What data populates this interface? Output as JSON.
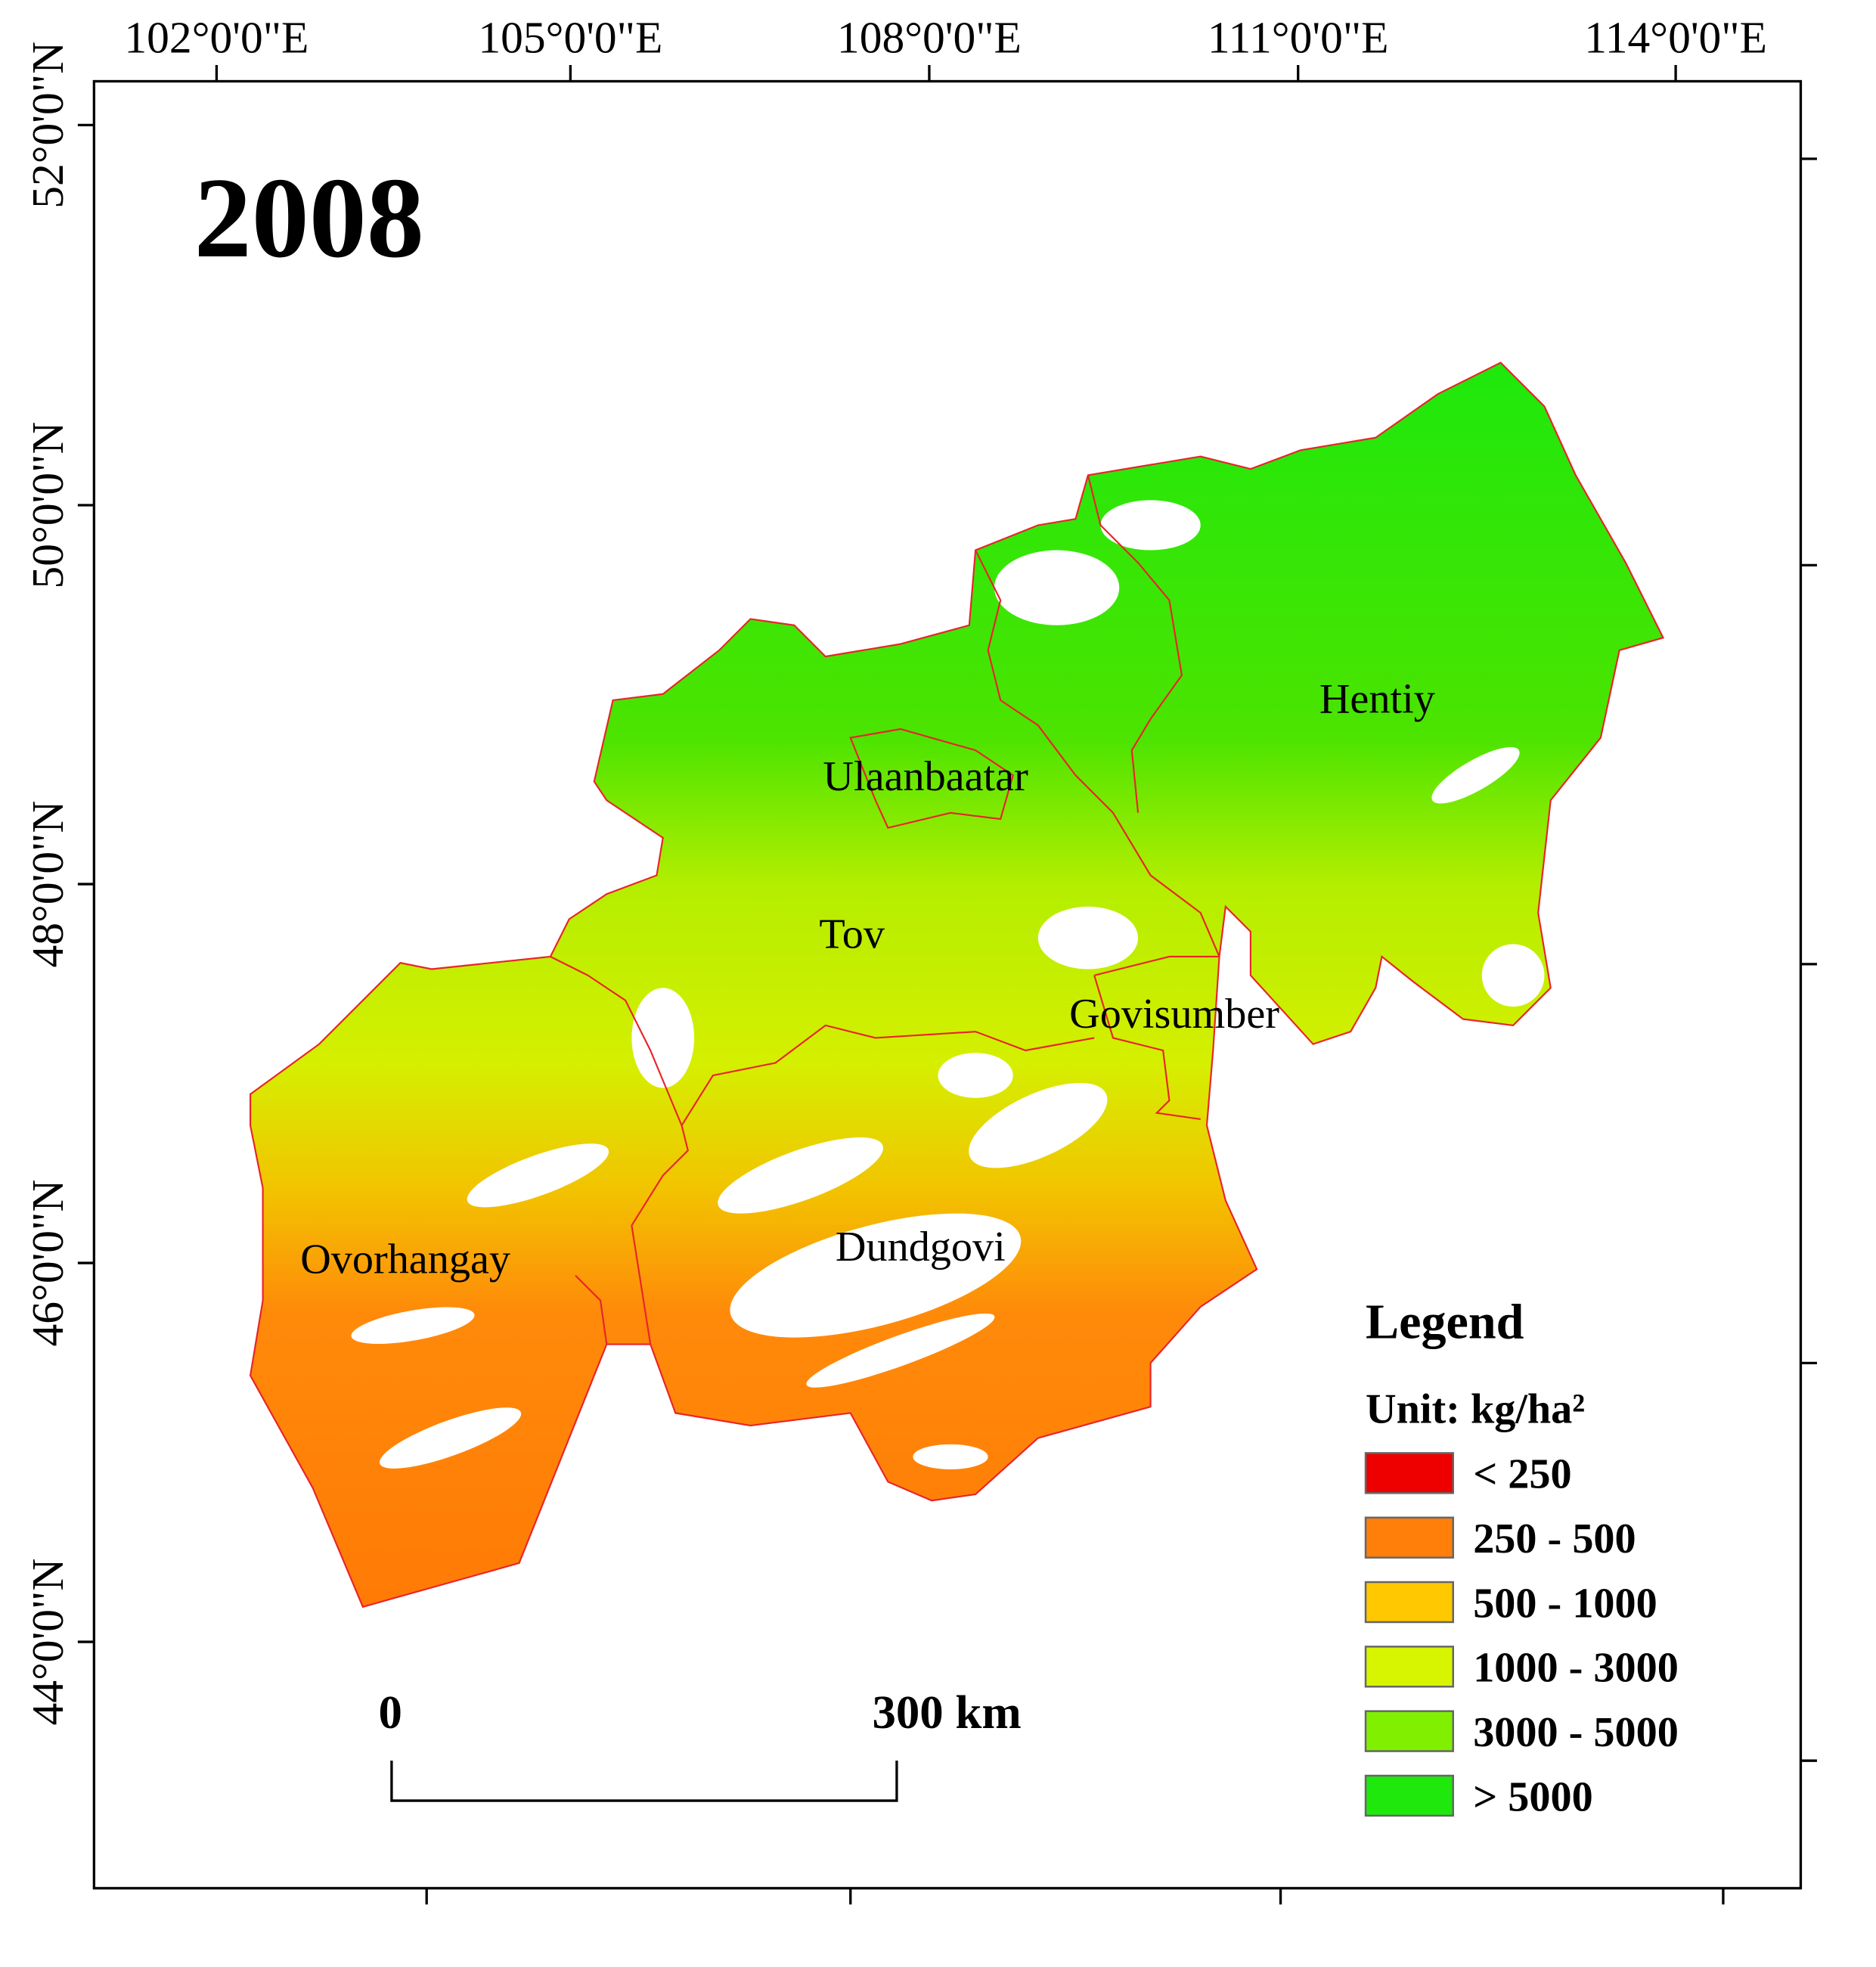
{
  "title": "2008",
  "longitude_labels": [
    "102°0'0\"E",
    "105°0'0\"E",
    "108°0'0\"E",
    "111°0'0\"E",
    "114°0'0\"E"
  ],
  "latitude_labels": [
    "52°0'0\"N",
    "50°0'0\"N",
    "48°0'0\"N",
    "46°0'0\"N",
    "44°0'0\"N"
  ],
  "regions": [
    {
      "label": "Hentiy"
    },
    {
      "label": "Ulaanbaatar"
    },
    {
      "label": "Tov"
    },
    {
      "label": "Govisumber"
    },
    {
      "label": "Ovorhangay"
    },
    {
      "label": "Dundgovi"
    }
  ],
  "legend": {
    "title": "Legend",
    "unit": "Unit: kg/ha²",
    "items": [
      {
        "label": "< 250",
        "color": "#ee0000"
      },
      {
        "label": "250 - 500",
        "color": "#ff7f0a"
      },
      {
        "label": "500 - 1000",
        "color": "#ffc800"
      },
      {
        "label": "1000 - 3000",
        "color": "#d7f500"
      },
      {
        "label": "3000 - 5000",
        "color": "#80f000"
      },
      {
        "label": "> 5000",
        "color": "#1ee80c"
      }
    ]
  },
  "scale_bar": {
    "start": "0",
    "end": "300 km"
  }
}
